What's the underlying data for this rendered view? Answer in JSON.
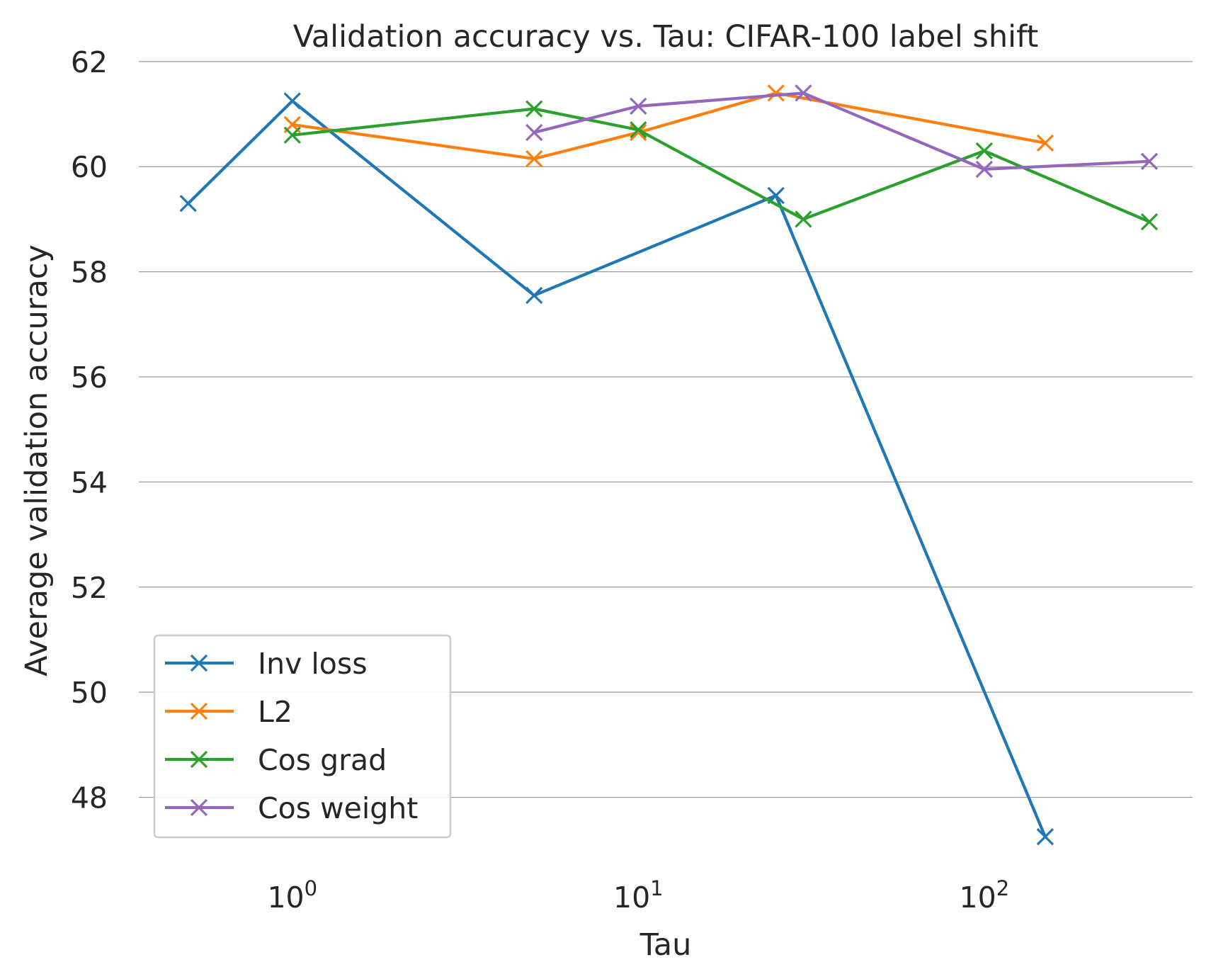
{
  "chart_data": {
    "type": "line",
    "title": "Validation accuracy vs. Tau: CIFAR-100 label shift",
    "xlabel": "Tau",
    "ylabel": "Average validation accuracy",
    "xscale": "log",
    "xlim": [
      0.36,
      400
    ],
    "ylim": [
      46.7,
      62.2
    ],
    "grid": "horizontal",
    "legend_position": "lower-left",
    "marker": "x",
    "x_ticks": [
      {
        "value": 1,
        "base": "10",
        "exp": "0"
      },
      {
        "value": 10,
        "base": "10",
        "exp": "1"
      },
      {
        "value": 100,
        "base": "10",
        "exp": "2"
      }
    ],
    "y_ticks": [
      {
        "value": 48,
        "label": "48"
      },
      {
        "value": 50,
        "label": "50"
      },
      {
        "value": 52,
        "label": "52"
      },
      {
        "value": 54,
        "label": "54"
      },
      {
        "value": 56,
        "label": "56"
      },
      {
        "value": 58,
        "label": "58"
      },
      {
        "value": 60,
        "label": "60"
      },
      {
        "value": 62,
        "label": "62"
      }
    ],
    "series": [
      {
        "name": "Inv loss",
        "color": "#1f77b4",
        "x": [
          0.5,
          1,
          5,
          25,
          150
        ],
        "y": [
          59.3,
          61.25,
          57.55,
          59.45,
          47.25
        ]
      },
      {
        "name": "L2",
        "color": "#ff7f0e",
        "x": [
          1,
          5,
          10,
          25,
          150
        ],
        "y": [
          60.8,
          60.15,
          60.65,
          61.4,
          60.45
        ]
      },
      {
        "name": "Cos grad",
        "color": "#2ca02c",
        "x": [
          1,
          5,
          10,
          30,
          100,
          300
        ],
        "y": [
          60.6,
          61.1,
          60.7,
          59.0,
          60.3,
          58.95
        ]
      },
      {
        "name": "Cos weight",
        "color": "#9467bd",
        "x": [
          5,
          10,
          30,
          100,
          300
        ],
        "y": [
          60.65,
          61.15,
          61.4,
          59.95,
          60.1
        ]
      }
    ]
  }
}
